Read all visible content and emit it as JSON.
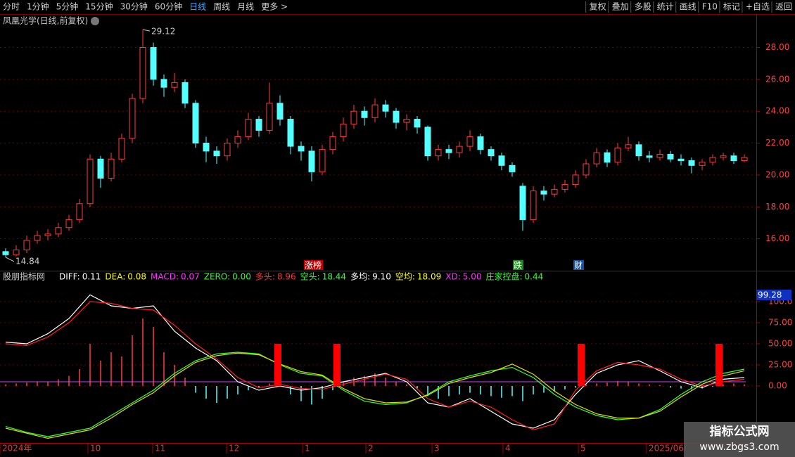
{
  "toolbar": {
    "left": [
      "分时",
      "1分钟",
      "5分钟",
      "15分钟",
      "30分钟",
      "60分钟",
      "日线",
      "周线",
      "月线",
      "更多 >"
    ],
    "active": 6,
    "right": [
      "复权",
      "叠加",
      "多股",
      "统计",
      "画线",
      "F10",
      "标记",
      "+自选",
      "返回"
    ]
  },
  "chart_data": [
    {
      "type": "candlestick",
      "title": "凤凰光学(日线,前复权)",
      "up_color": "#ff3c3c",
      "down_color": "#54ffff",
      "open": [
        15.2,
        15.0,
        15.3,
        15.9,
        16.2,
        16.3,
        16.7,
        17.2,
        18.2,
        21.0,
        19.8,
        21.0,
        22.3,
        24.8,
        28.0,
        26.0,
        25.5,
        25.8,
        24.5,
        22.0,
        21.5,
        21.2,
        22.0,
        22.4,
        23.5,
        22.8,
        24.5,
        23.5,
        21.8,
        21.5,
        20.2,
        21.6,
        22.4,
        23.2,
        24.0,
        23.6,
        24.4,
        24.0,
        23.3,
        23.5,
        23.0,
        21.2,
        21.6,
        21.4,
        21.8,
        22.4,
        21.6,
        21.2,
        20.6,
        19.3,
        17.2,
        19.0,
        18.8,
        19.1,
        19.4,
        20.0,
        20.7,
        21.4,
        20.8,
        21.7,
        21.9,
        21.2,
        21.1,
        21.3,
        21.0,
        20.9,
        20.6,
        20.8,
        21.1,
        21.2,
        20.9
      ],
      "high": [
        15.4,
        15.6,
        16.2,
        16.5,
        16.6,
        17.0,
        17.5,
        18.5,
        21.3,
        21.2,
        21.4,
        22.6,
        25.1,
        29.12,
        28.3,
        26.3,
        26.4,
        26.0,
        24.7,
        22.4,
        21.8,
        22.3,
        22.8,
        23.9,
        23.7,
        25.8,
        25.0,
        23.7,
        22.1,
        21.8,
        21.9,
        22.7,
        23.6,
        24.4,
        24.3,
        24.8,
        24.7,
        24.2,
        23.8,
        23.7,
        23.1,
        21.9,
        21.9,
        22.1,
        22.8,
        22.6,
        21.8,
        21.4,
        20.8,
        19.5,
        19.3,
        19.3,
        19.4,
        19.7,
        20.3,
        21.0,
        21.7,
        21.6,
        22.0,
        22.4,
        22.1,
        21.5,
        21.6,
        21.5,
        21.3,
        21.1,
        21.0,
        21.3,
        21.4,
        21.4,
        21.3
      ],
      "low": [
        14.84,
        14.9,
        15.1,
        15.7,
        15.9,
        16.1,
        16.5,
        17.0,
        18.0,
        19.2,
        19.6,
        20.8,
        22.0,
        24.5,
        25.6,
        24.9,
        25.2,
        24.2,
        21.7,
        20.8,
        20.7,
        20.9,
        21.7,
        22.2,
        22.4,
        22.6,
        23.1,
        21.3,
        20.9,
        19.6,
        20.0,
        21.3,
        22.1,
        22.9,
        23.1,
        23.3,
        23.6,
        22.9,
        22.8,
        22.6,
        20.9,
        20.9,
        21.0,
        21.1,
        21.5,
        21.3,
        20.9,
        20.3,
        19.9,
        16.5,
        17.0,
        18.4,
        18.6,
        18.9,
        19.2,
        19.8,
        20.5,
        20.5,
        20.6,
        21.5,
        20.9,
        20.8,
        20.9,
        20.8,
        20.6,
        20.1,
        20.3,
        20.6,
        20.9,
        20.7,
        20.8
      ],
      "close": [
        15.0,
        15.3,
        15.9,
        16.2,
        16.3,
        16.7,
        17.2,
        18.2,
        21.0,
        19.8,
        21.0,
        22.3,
        24.8,
        28.0,
        26.0,
        25.5,
        25.8,
        24.5,
        22.0,
        21.5,
        21.2,
        22.0,
        22.4,
        23.5,
        22.8,
        24.5,
        23.5,
        21.8,
        21.5,
        20.2,
        21.6,
        22.4,
        23.2,
        24.0,
        23.6,
        24.4,
        24.0,
        23.3,
        23.5,
        23.0,
        21.2,
        21.6,
        21.4,
        21.8,
        22.4,
        21.6,
        21.2,
        20.6,
        20.2,
        17.2,
        19.0,
        18.8,
        19.1,
        19.4,
        20.0,
        20.7,
        21.4,
        20.8,
        21.7,
        21.9,
        21.2,
        21.1,
        21.3,
        21.0,
        20.9,
        20.6,
        20.8,
        21.1,
        21.2,
        20.9,
        21.1
      ],
      "ylim": [
        14,
        29.3
      ],
      "yticks": [
        {
          "value": 16,
          "label": "16.00"
        },
        {
          "value": 18,
          "label": "18.00"
        },
        {
          "value": 20,
          "label": "20.00"
        },
        {
          "value": 22,
          "label": "22.00"
        },
        {
          "value": 24,
          "label": "24.00"
        },
        {
          "value": 26,
          "label": "26.00"
        },
        {
          "value": 28,
          "label": "28.00"
        }
      ],
      "grid": true,
      "events": [
        {
          "label": "涨榜",
          "color": "#c00000"
        },
        {
          "label": "跌",
          "color": "#1a8a1a"
        },
        {
          "label": "财",
          "color": "#1a4fa0"
        }
      ]
    },
    {
      "type": "indicator",
      "title": "股朋指标网",
      "legend": [
        {
          "name": "DIFF:",
          "value": "0.11",
          "color": "#ffffff"
        },
        {
          "name": "DEA:",
          "value": "0.08",
          "color": "#ffff00"
        },
        {
          "name": "MACD:",
          "value": "0.07",
          "color": "#ff33ff"
        },
        {
          "name": "ZERO:",
          "value": "0.00",
          "color": "#33ff33"
        },
        {
          "name": "多头:",
          "value": "8.96",
          "color": "#ff3333"
        },
        {
          "name": "空头:",
          "value": "18.44",
          "color": "#33ff33"
        },
        {
          "name": "多均:",
          "value": "9.10",
          "color": "#ffffff"
        },
        {
          "name": "空均:",
          "value": "18.09",
          "color": "#ffff00"
        },
        {
          "name": "XD:",
          "value": "5.00",
          "color": "#ff33ff"
        },
        {
          "name": "庄家控盘:",
          "value": "0.44",
          "color": "#33ff33"
        }
      ],
      "series": [
        {
          "color": "#ffffff",
          "values": [
            52,
            50,
            62,
            80,
            108,
            95,
            92,
            95,
            65,
            45,
            30,
            5,
            -5,
            0,
            -5,
            -2,
            5,
            10,
            15,
            5,
            -20,
            -25,
            -15,
            -30,
            -45,
            -50,
            -40,
            -10,
            15,
            25,
            30,
            18,
            5,
            -2,
            8,
            10
          ]
        },
        {
          "color": "#ff2020",
          "values": [
            50,
            48,
            58,
            75,
            100,
            98,
            92,
            90,
            72,
            50,
            32,
            10,
            -2,
            2,
            -3,
            -4,
            2,
            8,
            14,
            8,
            -15,
            -25,
            -18,
            -25,
            -40,
            -52,
            -45,
            -5,
            18,
            28,
            25,
            20,
            8,
            0,
            5,
            8
          ]
        },
        {
          "color": "#33ff33",
          "values": [
            -48,
            -55,
            -60,
            -55,
            -50,
            -35,
            -20,
            -5,
            15,
            30,
            38,
            40,
            38,
            25,
            15,
            12,
            -5,
            -18,
            -22,
            -20,
            -10,
            5,
            12,
            18,
            22,
            10,
            -10,
            -25,
            -35,
            -40,
            -38,
            -28,
            -10,
            5,
            15,
            20
          ]
        },
        {
          "color": "#e0e000",
          "values": [
            -50,
            -56,
            -62,
            -57,
            -52,
            -38,
            -22,
            -8,
            12,
            28,
            36,
            39,
            37,
            26,
            17,
            13,
            -3,
            -15,
            -20,
            -19,
            -11,
            3,
            10,
            16,
            26,
            14,
            -6,
            -22,
            -33,
            -38,
            -38,
            -30,
            -13,
            2,
            12,
            18
          ]
        }
      ],
      "histogram": [
        2,
        3,
        4,
        5,
        5,
        8,
        12,
        20,
        50,
        30,
        40,
        35,
        60,
        80,
        70,
        40,
        25,
        10,
        -8,
        -15,
        -20,
        -15,
        -10,
        -5,
        -2,
        3,
        1,
        -10,
        -18,
        -22,
        -15,
        -5,
        5,
        10,
        12,
        15,
        10,
        5,
        2,
        -3,
        -12,
        -15,
        -12,
        -10,
        -8,
        -10,
        -12,
        -14,
        -12,
        -18,
        -10,
        -8,
        -6,
        -4,
        -2,
        2,
        3,
        4,
        6,
        5,
        3,
        2,
        1,
        -2,
        -3,
        -4,
        -3,
        -1,
        2,
        3,
        2
      ],
      "signals": [
        50,
        50,
        50,
        50
      ],
      "signal_color": "#ff0000",
      "xd_line": 5,
      "xd_color": "#cc44ff",
      "ylim": [
        -67.5,
        120
      ],
      "yticks": [
        {
          "value": 0,
          "label": "0.00"
        },
        {
          "value": 25,
          "label": "25.00"
        },
        {
          "value": 50,
          "label": "50.00"
        },
        {
          "value": 75,
          "label": "75.00"
        },
        {
          "value": 100,
          "label": "100.0"
        }
      ],
      "current": "99.28"
    }
  ],
  "x_labels": [
    "2024年",
    "10",
    "11",
    "12",
    "1",
    "2",
    "3",
    "4",
    "5",
    "2025/06/"
  ],
  "watermark": {
    "title": "指标公式网",
    "url": "www.zbgs3.com"
  }
}
